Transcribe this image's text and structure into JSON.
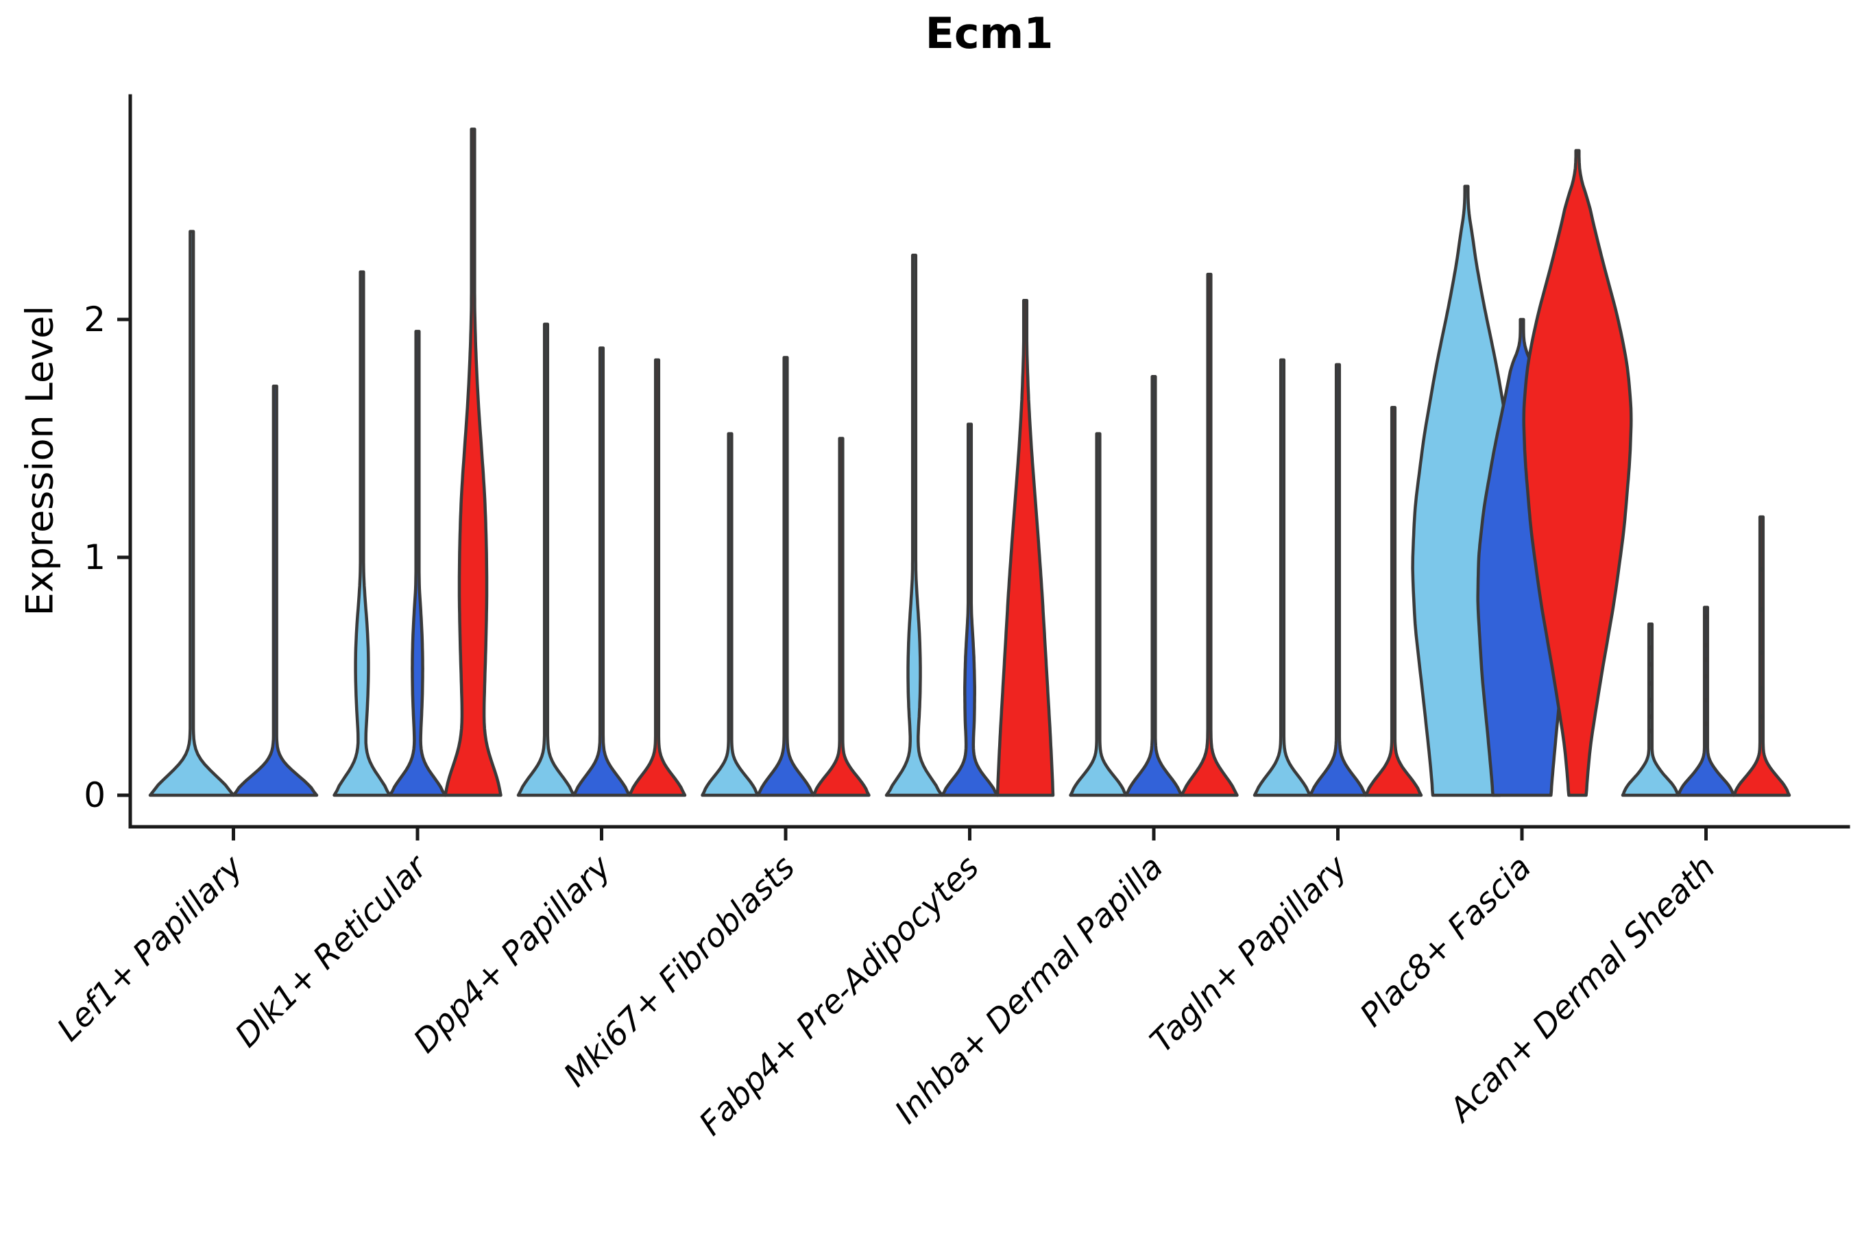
{
  "title": "Ecm1",
  "y_axis": {
    "label": "Expression Level",
    "tick_labels": [
      "0",
      "1",
      "2"
    ]
  },
  "chart_data": {
    "type": "violin",
    "title": "Ecm1",
    "xlabel": "",
    "ylabel": "Expression Level",
    "yticks": [
      0,
      1,
      2
    ],
    "ylim": [
      0,
      2.93
    ],
    "grid": false,
    "legend": "none",
    "outline_color": "#3A3A3A",
    "series": [
      {
        "key": "light-blue",
        "color": "#7CC7EA"
      },
      {
        "key": "blue",
        "color": "#3262D9"
      },
      {
        "key": "red",
        "color": "#EF2420"
      }
    ],
    "shapes": {
      "spike": [
        [
          0,
          1.0
        ],
        [
          0.04,
          0.82
        ],
        [
          0.09,
          0.42
        ],
        [
          0.14,
          0.13
        ],
        [
          0.18,
          0.04
        ]
      ]
    },
    "categories": [
      "Lef1+ Papillary",
      "Dlk1+ Reticular",
      "Dpp4+ Papillary",
      "Mki67+ Fibroblasts",
      "Fabp4+ Pre-Adipocytes",
      "Inhba+ Dermal Papilla",
      "Tagln+ Papillary",
      "Plac8+ Fascia",
      "Acan+ Dermal Sheath"
    ],
    "groups": [
      {
        "label": "Lef1+ Papillary",
        "violins": [
          {
            "series": 0,
            "max": 2.37,
            "shape": "spike",
            "w": 1.5
          },
          {
            "series": 1,
            "max": 1.72,
            "shape": "spike",
            "w": 1.5
          }
        ]
      },
      {
        "label": "Dlk1+ Reticular",
        "violins": [
          {
            "series": 0,
            "max": 2.2,
            "profile": [
              [
                0,
                1.0
              ],
              [
                0.05,
                0.75
              ],
              [
                0.1,
                0.35
              ],
              [
                0.16,
                0.14
              ],
              [
                0.22,
                0.12
              ],
              [
                0.3,
                0.17
              ],
              [
                0.42,
                0.22
              ],
              [
                0.55,
                0.24
              ],
              [
                0.68,
                0.2
              ],
              [
                0.8,
                0.12
              ],
              [
                0.92,
                0.05
              ],
              [
                1.0,
                0.03
              ]
            ]
          },
          {
            "series": 1,
            "max": 1.95,
            "profile": [
              [
                0,
                1.0
              ],
              [
                0.05,
                0.72
              ],
              [
                0.1,
                0.32
              ],
              [
                0.16,
                0.12
              ],
              [
                0.22,
                0.1
              ],
              [
                0.3,
                0.14
              ],
              [
                0.42,
                0.18
              ],
              [
                0.55,
                0.19
              ],
              [
                0.68,
                0.16
              ],
              [
                0.8,
                0.1
              ],
              [
                0.9,
                0.04
              ]
            ]
          },
          {
            "series": 2,
            "max": 2.8,
            "profile": [
              [
                0,
                1.0
              ],
              [
                0.06,
                0.9
              ],
              [
                0.14,
                0.6
              ],
              [
                0.22,
                0.42
              ],
              [
                0.3,
                0.38
              ],
              [
                0.45,
                0.42
              ],
              [
                0.65,
                0.47
              ],
              [
                0.85,
                0.5
              ],
              [
                1.05,
                0.48
              ],
              [
                1.25,
                0.42
              ],
              [
                1.45,
                0.3
              ],
              [
                1.65,
                0.18
              ],
              [
                1.85,
                0.1
              ],
              [
                2.05,
                0.05
              ]
            ]
          }
        ]
      },
      {
        "label": "Dpp4+ Papillary",
        "violins": [
          {
            "series": 0,
            "max": 1.98,
            "shape": "spike"
          },
          {
            "series": 1,
            "max": 1.88,
            "shape": "spike"
          },
          {
            "series": 2,
            "max": 1.83,
            "shape": "spike"
          }
        ]
      },
      {
        "label": "Mki67+ Fibroblasts",
        "violins": [
          {
            "series": 0,
            "max": 1.52,
            "shape": "spike"
          },
          {
            "series": 1,
            "max": 1.84,
            "shape": "spike"
          },
          {
            "series": 2,
            "max": 1.5,
            "shape": "spike"
          }
        ]
      },
      {
        "label": "Fabp4+ Pre-Adipocytes",
        "violins": [
          {
            "series": 0,
            "max": 2.27,
            "profile": [
              [
                0,
                1.0
              ],
              [
                0.05,
                0.7
              ],
              [
                0.1,
                0.3
              ],
              [
                0.17,
                0.12
              ],
              [
                0.25,
                0.14
              ],
              [
                0.35,
                0.2
              ],
              [
                0.5,
                0.23
              ],
              [
                0.65,
                0.2
              ],
              [
                0.78,
                0.13
              ],
              [
                0.9,
                0.06
              ],
              [
                1.0,
                0.03
              ]
            ]
          },
          {
            "series": 1,
            "max": 1.56,
            "profile": [
              [
                0,
                1.0
              ],
              [
                0.05,
                0.7
              ],
              [
                0.1,
                0.3
              ],
              [
                0.16,
                0.12
              ],
              [
                0.22,
                0.13
              ],
              [
                0.32,
                0.17
              ],
              [
                0.45,
                0.18
              ],
              [
                0.58,
                0.15
              ],
              [
                0.7,
                0.09
              ],
              [
                0.8,
                0.04
              ]
            ]
          },
          {
            "series": 2,
            "max": 2.08,
            "profile": [
              [
                0,
                1.0
              ],
              [
                0.08,
                0.97
              ],
              [
                0.25,
                0.9
              ],
              [
                0.45,
                0.8
              ],
              [
                0.65,
                0.7
              ],
              [
                0.85,
                0.6
              ],
              [
                1.05,
                0.48
              ],
              [
                1.25,
                0.35
              ],
              [
                1.45,
                0.22
              ],
              [
                1.65,
                0.12
              ],
              [
                1.85,
                0.06
              ]
            ]
          }
        ]
      },
      {
        "label": "Inhba+ Dermal Papilla",
        "violins": [
          {
            "series": 0,
            "max": 1.52,
            "shape": "spike"
          },
          {
            "series": 1,
            "max": 1.76,
            "shape": "spike"
          },
          {
            "series": 2,
            "max": 2.19,
            "shape": "spike"
          }
        ]
      },
      {
        "label": "Tagln+ Papillary",
        "violins": [
          {
            "series": 0,
            "max": 1.83,
            "shape": "spike"
          },
          {
            "series": 1,
            "max": 1.81,
            "shape": "spike"
          },
          {
            "series": 2,
            "max": 1.63,
            "shape": "spike"
          }
        ]
      },
      {
        "label": "Plac8+ Fascia",
        "violins": [
          {
            "series": 0,
            "max": 2.56,
            "w": 1.95,
            "flat_base": true,
            "profile": [
              [
                0,
                0.62
              ],
              [
                0.15,
                0.68
              ],
              [
                0.4,
                0.8
              ],
              [
                0.7,
                0.95
              ],
              [
                0.95,
                1.0
              ],
              [
                1.2,
                0.95
              ],
              [
                1.5,
                0.78
              ],
              [
                1.8,
                0.55
              ],
              [
                2.05,
                0.32
              ],
              [
                2.25,
                0.16
              ],
              [
                2.4,
                0.08
              ]
            ]
          },
          {
            "series": 1,
            "max": 2.0,
            "w": 1.9,
            "flat_base": true,
            "profile": [
              [
                0,
                0.55
              ],
              [
                0.2,
                0.63
              ],
              [
                0.5,
                0.76
              ],
              [
                0.8,
                0.84
              ],
              [
                1.0,
                0.82
              ],
              [
                1.2,
                0.72
              ],
              [
                1.45,
                0.52
              ],
              [
                1.65,
                0.33
              ],
              [
                1.85,
                0.15
              ]
            ]
          },
          {
            "series": 2,
            "max": 2.71,
            "w": 1.95,
            "flat_base": true,
            "profile": [
              [
                0,
                0.16
              ],
              [
                0.2,
                0.24
              ],
              [
                0.5,
                0.45
              ],
              [
                0.8,
                0.68
              ],
              [
                1.1,
                0.86
              ],
              [
                1.4,
                0.97
              ],
              [
                1.6,
                1.0
              ],
              [
                1.8,
                0.92
              ],
              [
                2.0,
                0.74
              ],
              [
                2.2,
                0.5
              ],
              [
                2.4,
                0.28
              ],
              [
                2.55,
                0.14
              ]
            ]
          }
        ]
      },
      {
        "label": "Acan+ Dermal Sheath",
        "violins": [
          {
            "series": 0,
            "max": 0.72,
            "shape": "spike",
            "dots": [
              0.27,
              0.33,
              0.4,
              0.47,
              0.55,
              0.62
            ]
          },
          {
            "series": 1,
            "max": 0.79,
            "shape": "spike",
            "dots": [
              0.3,
              0.4,
              0.5,
              0.57,
              0.63,
              0.75
            ]
          },
          {
            "series": 2,
            "max": 1.17,
            "shape": "spike",
            "dots": [
              0.33,
              0.45,
              0.6,
              0.78,
              0.95
            ]
          }
        ]
      }
    ]
  }
}
